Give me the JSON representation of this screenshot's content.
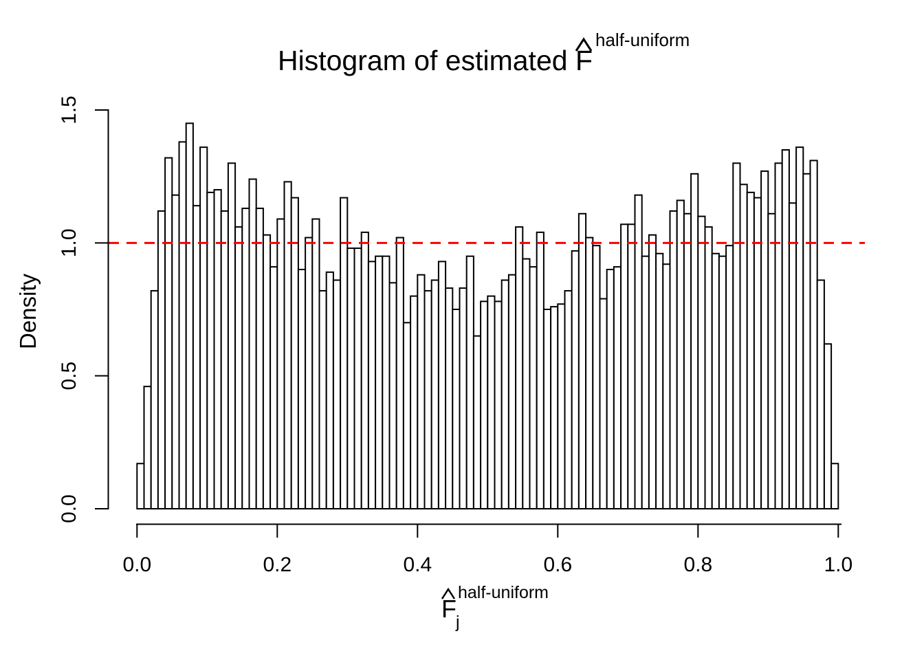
{
  "title": {
    "text": "Histogram of estimated F",
    "hat": "^",
    "superscript": "half-uniform"
  },
  "y_axis": {
    "label": "Density",
    "tick_labels": [
      "0.0",
      "0.5",
      "1.0",
      "1.5"
    ]
  },
  "x_axis": {
    "label_base": "F",
    "label_hat": "^",
    "label_subscript": "j",
    "label_superscript": "half-uniform",
    "tick_labels": [
      "0.0",
      "0.2",
      "0.4",
      "0.6",
      "0.8",
      "1.0"
    ]
  },
  "colors": {
    "background": "#ffffff",
    "bar_fill": "#ffffff",
    "bar_stroke": "#000000",
    "axis": "#000000",
    "reference_line": "#ff0000"
  },
  "chart_data": {
    "type": "bar",
    "subtype": "histogram",
    "title": "Histogram of estimated F^half-uniform",
    "xlabel": "F_j^half-uniform",
    "ylabel": "Density",
    "xlim": [
      0,
      1
    ],
    "ylim": [
      0,
      1.5
    ],
    "grid": false,
    "bin_start": 0,
    "bin_width": 0.01,
    "reference_line": {
      "y": 1.0,
      "style": "dashed",
      "color": "#ff0000"
    },
    "densities": [
      0.17,
      0.46,
      0.82,
      1.12,
      1.32,
      1.18,
      1.38,
      1.45,
      1.14,
      1.36,
      1.19,
      1.2,
      1.12,
      1.3,
      1.06,
      1.13,
      1.24,
      1.13,
      1.03,
      0.91,
      1.09,
      1.23,
      1.17,
      0.9,
      1.02,
      1.09,
      0.82,
      0.89,
      0.86,
      1.17,
      0.98,
      0.98,
      1.04,
      0.93,
      0.95,
      0.95,
      0.85,
      1.02,
      0.7,
      0.8,
      0.88,
      0.82,
      0.86,
      0.93,
      0.83,
      0.75,
      0.83,
      0.95,
      0.65,
      0.78,
      0.8,
      0.78,
      0.86,
      0.88,
      1.06,
      0.94,
      0.91,
      1.04,
      0.75,
      0.76,
      0.77,
      0.82,
      0.97,
      1.11,
      1.02,
      0.99,
      0.79,
      0.9,
      0.91,
      1.07,
      1.07,
      1.18,
      0.95,
      1.03,
      0.96,
      0.92,
      1.12,
      1.16,
      1.11,
      1.26,
      1.1,
      1.06,
      0.96,
      0.95,
      0.99,
      1.3,
      1.22,
      1.19,
      1.17,
      1.27,
      1.11,
      1.3,
      1.35,
      1.15,
      1.36,
      1.26,
      1.31,
      0.86,
      0.62,
      0.17
    ]
  }
}
